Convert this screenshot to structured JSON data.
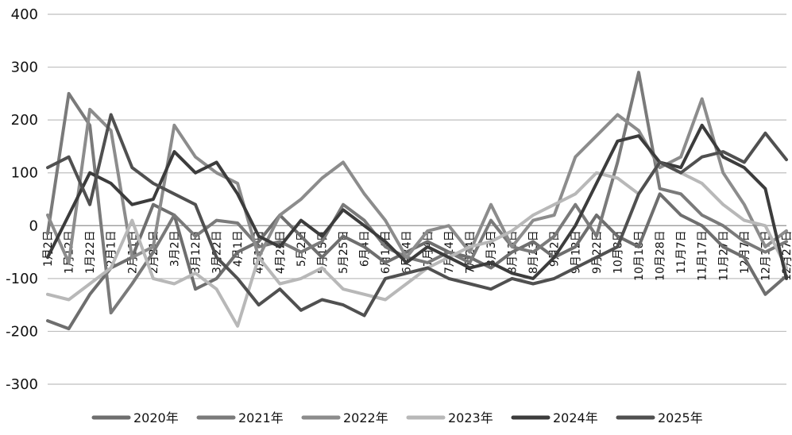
{
  "chart_data": {
    "type": "line",
    "title": "",
    "xlabel": "",
    "ylabel": "",
    "ylim": [
      -300,
      400
    ],
    "yticks": [
      400,
      300,
      200,
      100,
      0,
      -100,
      -200,
      -300
    ],
    "grid": "horizontal",
    "legend_position": "bottom",
    "x_labels": [
      "1月2日",
      "1月12日",
      "1月22日",
      "2月1日",
      "2月11日",
      "2月21日",
      "3月2日",
      "3月12日",
      "3月22日",
      "4月1日",
      "4月12日",
      "4月22日",
      "5月2日",
      "5月15日",
      "5月25日",
      "6月4日",
      "6月14日",
      "6月24日",
      "7月4日",
      "7月14日",
      "7月24日",
      "8月3日",
      "8月13日",
      "8月23日",
      "9月2日",
      "9月12日",
      "9月22日",
      "10月8日",
      "10月18日",
      "10月28日",
      "11月7日",
      "11月17日",
      "11月27日",
      "12月7日",
      "12月17日",
      "12月27日"
    ],
    "series": [
      {
        "name": "2020年",
        "color": "#6e6e6e",
        "values": [
          -180,
          -195,
          -130,
          -80,
          -60,
          40,
          20,
          -120,
          -100,
          -50,
          -30,
          20,
          -20,
          -60,
          -20,
          -40,
          -70,
          -50,
          -30,
          -50,
          -60,
          -80,
          -50,
          -30,
          -60,
          -40,
          20,
          -20,
          -40,
          60,
          20,
          0,
          -40,
          -60,
          -130,
          -95
        ]
      },
      {
        "name": "2021年",
        "color": "#7a7a7a",
        "values": [
          -15,
          250,
          190,
          -165,
          -110,
          -50,
          20,
          -20,
          10,
          5,
          -40,
          -30,
          -50,
          -30,
          40,
          10,
          -40,
          -60,
          -70,
          -50,
          -70,
          10,
          -40,
          -50,
          -20,
          40,
          -20,
          120,
          290,
          70,
          60,
          20,
          0,
          -30,
          -50,
          -30
        ]
      },
      {
        "name": "2022年",
        "color": "#8c8c8c",
        "values": [
          20,
          -70,
          220,
          180,
          -60,
          -40,
          190,
          130,
          100,
          80,
          -60,
          20,
          50,
          90,
          120,
          60,
          10,
          -60,
          -10,
          0,
          -50,
          40,
          -40,
          10,
          20,
          130,
          170,
          210,
          180,
          110,
          130,
          240,
          100,
          40,
          -40,
          -10
        ]
      },
      {
        "name": "2023年",
        "color": "#b8b8b8",
        "values": [
          -130,
          -140,
          -110,
          -80,
          10,
          -100,
          -110,
          -90,
          -120,
          -190,
          -60,
          -110,
          -100,
          -80,
          -120,
          -130,
          -140,
          -110,
          -80,
          -60,
          -40,
          -30,
          -10,
          20,
          40,
          60,
          100,
          90,
          60,
          120,
          100,
          80,
          40,
          10,
          0,
          -80
        ]
      },
      {
        "name": "2024年",
        "color": "#3c3c3c",
        "values": [
          -60,
          20,
          100,
          80,
          40,
          50,
          140,
          100,
          120,
          60,
          -20,
          -40,
          10,
          -20,
          30,
          0,
          -30,
          -70,
          -40,
          -60,
          -80,
          -70,
          -90,
          -100,
          -60,
          0,
          80,
          160,
          170,
          120,
          110,
          190,
          130,
          110,
          70,
          -100
        ]
      },
      {
        "name": "2025年",
        "color": "#505050",
        "values": [
          110,
          130,
          40,
          210,
          110,
          80,
          60,
          40,
          -60,
          -100,
          -150,
          -120,
          -160,
          -140,
          -150,
          -170,
          -100,
          -90,
          -80,
          -100,
          -110,
          -120,
          -100,
          -110,
          -100,
          -80,
          -60,
          -40,
          60,
          120,
          100,
          130,
          140,
          120,
          175,
          125
        ]
      }
    ]
  }
}
